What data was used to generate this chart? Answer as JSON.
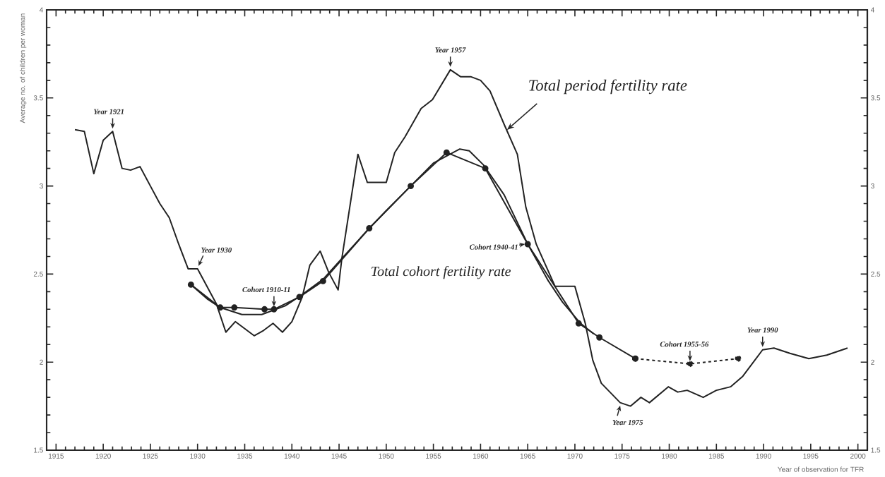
{
  "chart_data": {
    "type": "line",
    "xlabel": "Year of observation for TFR",
    "ylabel": "Average no. of children per woman",
    "xlim": [
      1914,
      2001
    ],
    "ylim": [
      1.5,
      4
    ],
    "y2lim": [
      1.5,
      4
    ],
    "xticks": [
      1915,
      1920,
      1925,
      1930,
      1935,
      1940,
      1945,
      1950,
      1955,
      1960,
      1965,
      1970,
      1975,
      1980,
      1985,
      1990,
      1995,
      2000
    ],
    "yticks": [
      1.5,
      2,
      2.5,
      3,
      3.5,
      4
    ],
    "y2ticks": [
      1.5,
      2,
      2.5,
      3,
      3.5,
      4
    ],
    "grid": false,
    "series": [
      {
        "name": "Total period fertility rate",
        "color": "#222222",
        "marker": "none",
        "line_style": "solid",
        "x": [
          1917.0,
          1918.0,
          1919.0,
          1920.0,
          1921.0,
          1922.0,
          1922.9,
          1923.9,
          1925.0,
          1926.0,
          1927.0,
          1928.0,
          1929.0,
          1930.0,
          1932.0,
          1933.0,
          1934.0,
          1935.0,
          1936.0,
          1937.0,
          1938.0,
          1939.0,
          1940.0,
          1941.1,
          1941.9,
          1943.0,
          1943.9,
          1944.9,
          1945.3,
          1947.0,
          1948.0,
          1950.0,
          1950.9,
          1952.0,
          1953.7,
          1954.9,
          1956.8,
          1957.9,
          1959.0,
          1960.0,
          1961.0,
          1962.5,
          1963.9,
          1964.8,
          1965.9,
          1967.9,
          1970.0,
          1971.1,
          1971.9,
          1972.8,
          1974.8,
          1975.9,
          1977.0,
          1977.9,
          1979.9,
          1980.9,
          1981.9,
          1983.6,
          1985.0,
          1986.5,
          1987.8,
          1989.9,
          1991.1,
          1992.8,
          1994.8,
          1996.7,
          1998.9
        ],
        "values": [
          3.32,
          3.31,
          3.07,
          3.26,
          3.31,
          3.1,
          3.09,
          3.11,
          3.0,
          2.9,
          2.82,
          2.67,
          2.53,
          2.53,
          2.33,
          2.17,
          2.23,
          2.19,
          2.15,
          2.18,
          2.22,
          2.17,
          2.23,
          2.37,
          2.55,
          2.63,
          2.51,
          2.41,
          2.59,
          3.18,
          3.02,
          3.02,
          3.19,
          3.28,
          3.44,
          3.49,
          3.66,
          3.62,
          3.62,
          3.6,
          3.54,
          3.35,
          3.18,
          2.88,
          2.67,
          2.43,
          2.43,
          2.22,
          2.01,
          1.88,
          1.77,
          1.75,
          1.8,
          1.77,
          1.86,
          1.83,
          1.84,
          1.8,
          1.84,
          1.86,
          1.92,
          2.07,
          2.08,
          2.05,
          2.02,
          2.04,
          2.08
        ]
      },
      {
        "color": "#222222",
        "marker": "none",
        "line_style": "solid",
        "x": [
          1929.3,
          1931.0,
          1932.4,
          1934.7,
          1936.8,
          1939.3,
          1941.0,
          1943.3,
          1946.0,
          1948.2,
          1950.0,
          1952.6,
          1955.0,
          1957.8,
          1958.8,
          1960.3,
          1962.5,
          1965.0,
          1967.2,
          1968.7,
          1970.6,
          1972.0
        ],
        "values": [
          2.44,
          2.36,
          2.31,
          2.27,
          2.27,
          2.32,
          2.38,
          2.47,
          2.63,
          2.76,
          2.86,
          3.0,
          3.13,
          3.21,
          3.2,
          3.12,
          2.95,
          2.67,
          2.46,
          2.34,
          2.22,
          2.16
        ]
      },
      {
        "name": "Total cohort fertility rate",
        "color": "#222222",
        "marker": "circle",
        "line_style": "solid",
        "x": [
          1929.3,
          1932.4,
          1933.9,
          1937.1,
          1938.1,
          1940.8,
          1943.3,
          1948.2,
          1952.6,
          1956.4,
          1960.5,
          1965.0,
          1970.4,
          1972.6,
          1976.4
        ],
        "values": [
          2.44,
          2.31,
          2.31,
          2.3,
          2.3,
          2.37,
          2.46,
          2.76,
          3.0,
          3.19,
          3.1,
          2.67,
          2.22,
          2.14,
          2.02
        ]
      },
      {
        "color": "#222222",
        "marker": "circle",
        "line_style": "dashed",
        "x": [
          1976.4,
          1982.2,
          1987.3
        ],
        "values": [
          2.02,
          1.99,
          2.02
        ]
      }
    ],
    "annotations": [
      {
        "text": "Year 1921",
        "x": 1921.0,
        "y": 3.31
      },
      {
        "text": "Year 1930",
        "x": 1930.0,
        "y": 2.53
      },
      {
        "text": "Year 1957",
        "x": 1956.8,
        "y": 3.66
      },
      {
        "text": "Year 1975",
        "x": 1974.8,
        "y": 1.77
      },
      {
        "text": "Year 1990",
        "x": 1989.9,
        "y": 2.07
      },
      {
        "text": "Cohort 1910-11",
        "x": 1938.1,
        "y": 2.3
      },
      {
        "text": "Cohort 1940-41",
        "x": 1965.0,
        "y": 2.67
      },
      {
        "text": "Cohort 1955-56",
        "x": 1982.2,
        "y": 1.99
      }
    ]
  }
}
